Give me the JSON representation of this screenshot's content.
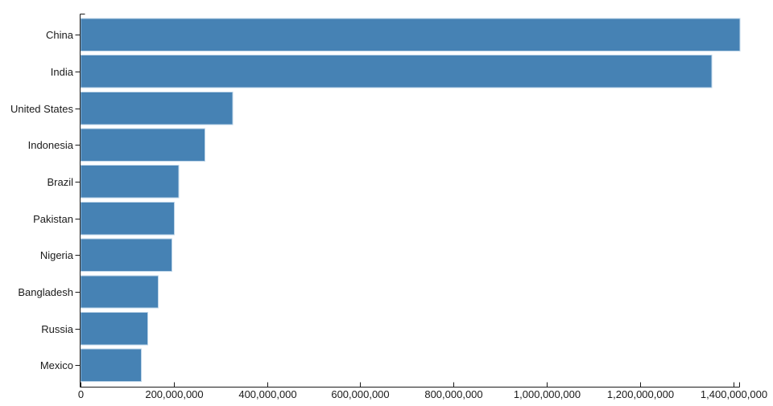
{
  "chart_data": {
    "type": "bar",
    "orientation": "horizontal",
    "title": "",
    "xlabel": "",
    "ylabel": "",
    "categories": [
      "China",
      "India",
      "United States",
      "Indonesia",
      "Brazil",
      "Pakistan",
      "Nigeria",
      "Bangladesh",
      "Russia",
      "Mexico"
    ],
    "values": [
      1415045928,
      1354051854,
      326766748,
      266794980,
      210867954,
      200813818,
      195875237,
      166368149,
      143964709,
      130759074
    ],
    "xlim": [
      0,
      1400000000
    ],
    "x_ticks": [
      0,
      200000000,
      400000000,
      600000000,
      800000000,
      1000000000,
      1200000000,
      1400000000
    ],
    "x_tick_labels": [
      "0",
      "200,000,000",
      "400,000,000",
      "600,000,000",
      "800,000,000",
      "1,000,000,000",
      "1,200,000,000",
      "1,400,000,000"
    ],
    "grid": false,
    "legend": false,
    "colors": {
      "bar_fill": "#4682b4",
      "bar_stroke": "#bcd4e8",
      "axis": "#1a1a1a",
      "text": "#1a1a1a",
      "background": "#ffffff"
    }
  }
}
